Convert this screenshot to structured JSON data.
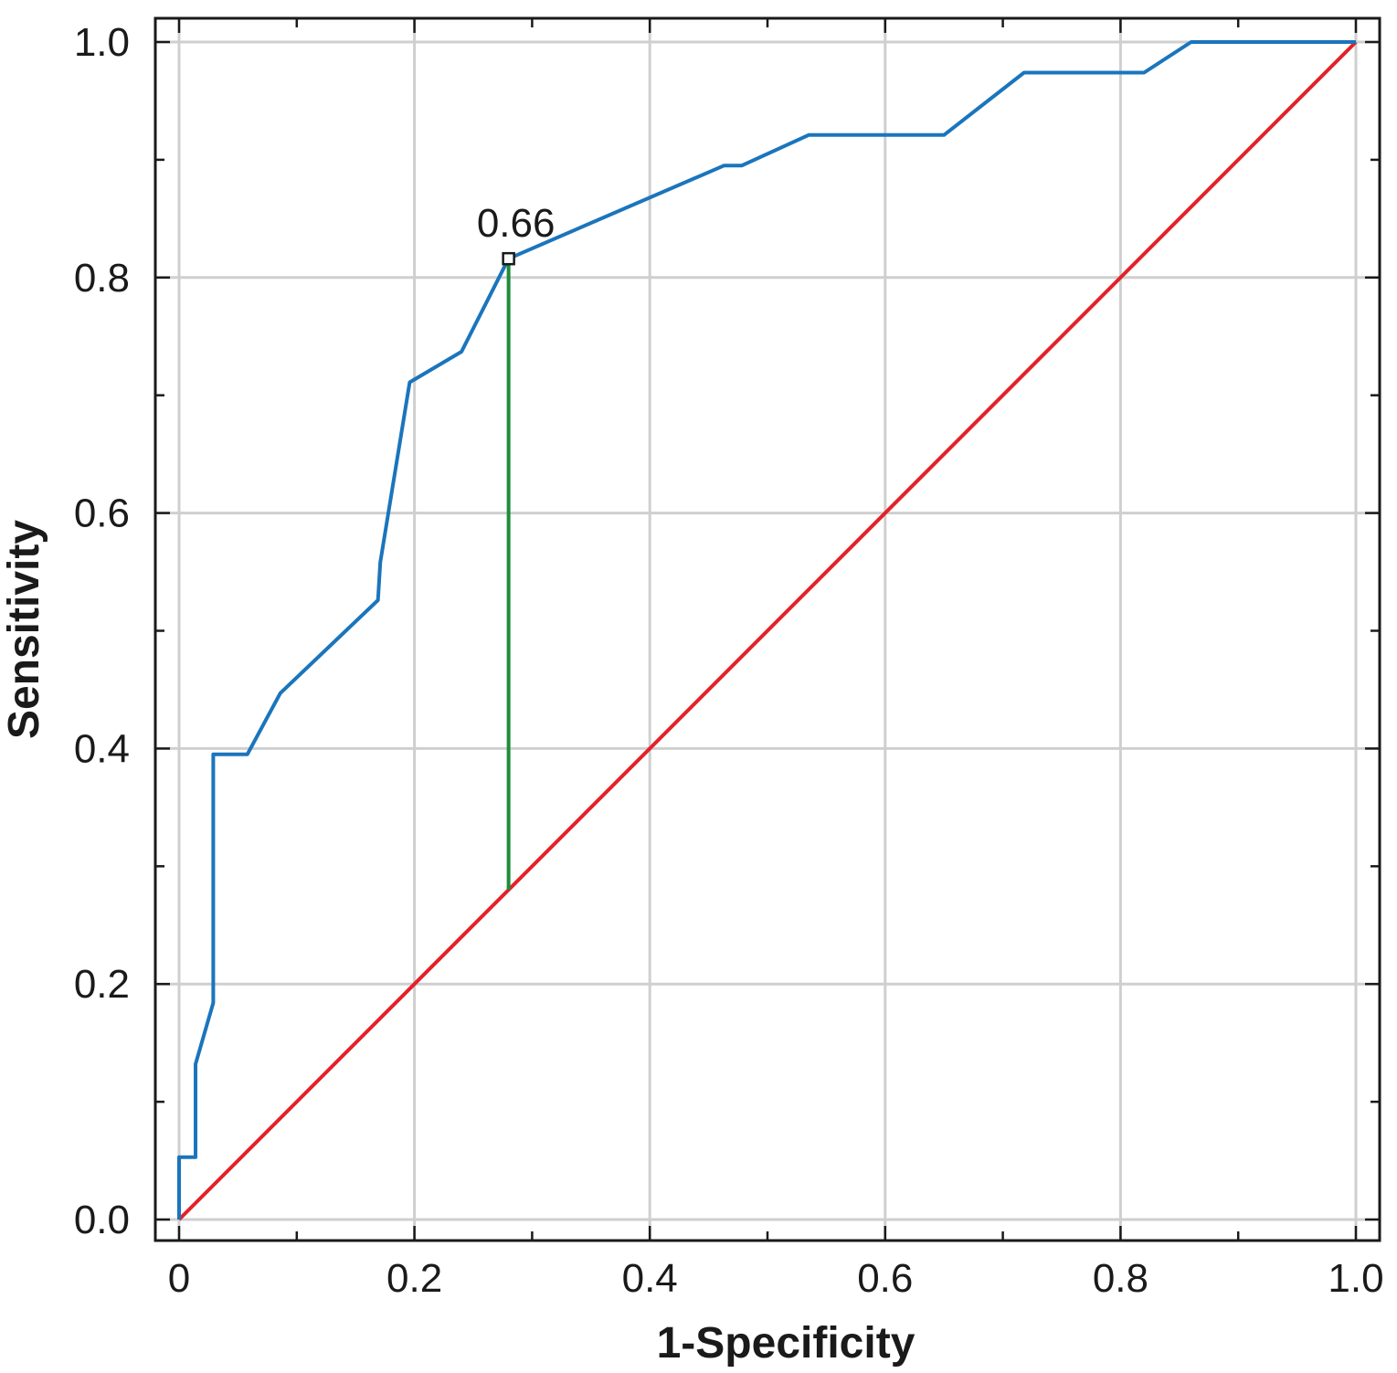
{
  "chart_data": {
    "type": "line",
    "xlabel": "1-Specificity",
    "ylabel": "Sensitivity",
    "xlim": [
      0,
      1.0
    ],
    "ylim": [
      0,
      1.0
    ],
    "grid": true,
    "x_ticks": [
      "0",
      "0.2",
      "0.4",
      "0.6",
      "0.8",
      "1.0"
    ],
    "y_ticks": [
      "0.0",
      "0.2",
      "0.4",
      "0.6",
      "0.8",
      "1.0"
    ],
    "x_tick_values": [
      0,
      0.2,
      0.4,
      0.6,
      0.8,
      1.0
    ],
    "y_tick_values": [
      0,
      0.2,
      0.4,
      0.6,
      0.8,
      1.0
    ],
    "x_minor_ticks": [
      0.1,
      0.3,
      0.5,
      0.7,
      0.9
    ],
    "y_minor_ticks": [
      0.1,
      0.3,
      0.5,
      0.7,
      0.9
    ],
    "series": [
      {
        "color": "#1a75bc",
        "points": [
          [
            0,
            0
          ],
          [
            0,
            0.053
          ],
          [
            0.014,
            0.053
          ],
          [
            0.014,
            0.132
          ],
          [
            0.029,
            0.184
          ],
          [
            0.029,
            0.395
          ],
          [
            0.058,
            0.395
          ],
          [
            0.086,
            0.447
          ],
          [
            0.169,
            0.526
          ],
          [
            0.171,
            0.558
          ],
          [
            0.196,
            0.711
          ],
          [
            0.24,
            0.737
          ],
          [
            0.28,
            0.816
          ],
          [
            0.34,
            0.842
          ],
          [
            0.463,
            0.895
          ],
          [
            0.478,
            0.895
          ],
          [
            0.535,
            0.921
          ],
          [
            0.65,
            0.921
          ],
          [
            0.718,
            0.974
          ],
          [
            0.82,
            0.974
          ],
          [
            0.86,
            1.0
          ],
          [
            1.0,
            1.0
          ]
        ]
      },
      {
        "color": "#e32129",
        "points": [
          [
            0,
            0
          ],
          [
            1.0,
            1.0
          ]
        ]
      }
    ],
    "cutoff": {
      "label": "0.66",
      "x": 0.28,
      "y": 0.816,
      "diagonal_y": 0.28,
      "marker_color": "#1a1a1a",
      "line_color": "#1e8c3a"
    },
    "grid_color": "#cfcfcf",
    "axis_color": "#1a1a1a"
  }
}
